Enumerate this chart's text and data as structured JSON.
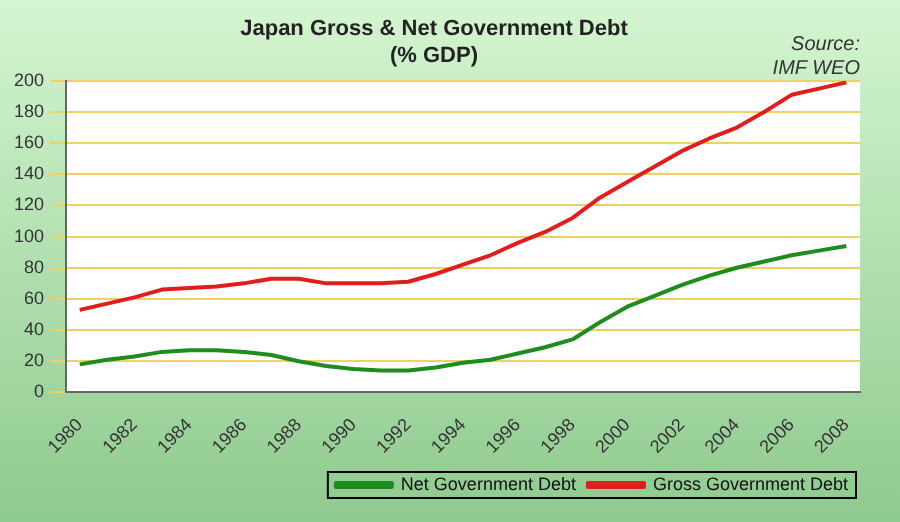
{
  "chart_data": {
    "type": "line",
    "title": [
      "Japan Gross & Net Government Debt",
      "(% GDP)"
    ],
    "annotations": [
      "Source:\nIMF WEO"
    ],
    "categories": [
      "1980",
      null,
      "1982",
      null,
      "1984",
      null,
      "1986",
      null,
      "1988",
      null,
      "1990",
      null,
      "1992",
      null,
      "1994",
      null,
      "1996",
      null,
      "1998",
      null,
      "2000",
      null,
      "2002",
      null,
      "2004",
      null,
      "2006",
      null,
      "2008"
    ],
    "series": [
      {
        "name": "Net Government Debt",
        "color": "#1e8c1e",
        "values": [
          18,
          21,
          23,
          26,
          27,
          27,
          26,
          24,
          20,
          17,
          15,
          14,
          14,
          16,
          19,
          21,
          25,
          29,
          34,
          45,
          55,
          62,
          69,
          75,
          80,
          84,
          88,
          91,
          94
        ]
      },
      {
        "name": "Gross Government Debt",
        "color": "#e01e1e",
        "values": [
          53,
          57,
          61,
          66,
          67,
          68,
          70,
          73,
          73,
          70,
          70,
          70,
          71,
          76,
          82,
          88,
          96,
          103,
          112,
          125,
          135,
          145,
          155,
          163,
          170,
          180,
          191,
          195,
          199
        ]
      }
    ],
    "ylim": [
      0,
      200
    ],
    "yticks": [
      0,
      20,
      40,
      60,
      80,
      100,
      120,
      140,
      160,
      180,
      200
    ],
    "grid": "y",
    "legend": "bottom right",
    "marker": "none",
    "line_style": "solid"
  }
}
